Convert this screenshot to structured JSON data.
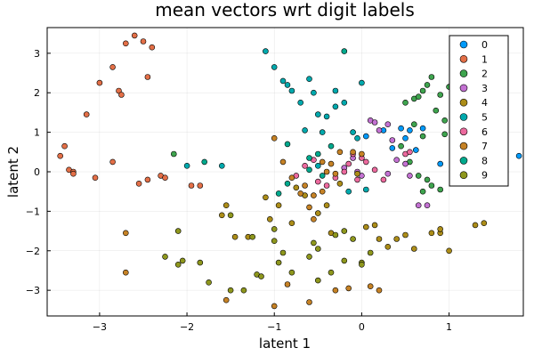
{
  "chart_data": {
    "type": "scatter",
    "title": "mean vectors wrt digit labels",
    "xlabel": "latent 1",
    "ylabel": "latent 2",
    "xlim": [
      -3.6,
      1.85
    ],
    "ylim": [
      -3.65,
      3.65
    ],
    "xticks": [
      -3,
      -2,
      -1,
      0,
      1
    ],
    "yticks": [
      -3,
      -2,
      -1,
      0,
      1,
      2,
      3
    ],
    "grid": true,
    "legend_position": "top-right",
    "series": [
      {
        "name": "0",
        "color": "#009AFA",
        "points": [
          [
            0.05,
            0.9
          ],
          [
            0.25,
            1.05
          ],
          [
            0.45,
            1.1
          ],
          [
            0.55,
            1.05
          ],
          [
            0.7,
            1.1
          ],
          [
            0.62,
            0.55
          ],
          [
            0.9,
            0.2
          ],
          [
            1.05,
            0.45
          ],
          [
            1.2,
            0.55
          ],
          [
            1.45,
            0.5
          ],
          [
            1.6,
            0.45
          ],
          [
            1.8,
            0.4
          ],
          [
            0.35,
            0.6
          ],
          [
            0.5,
            0.85
          ]
        ]
      },
      {
        "name": "1",
        "color": "#E36F47",
        "points": [
          [
            -3.45,
            0.4
          ],
          [
            -3.4,
            0.65
          ],
          [
            -3.35,
            0.05
          ],
          [
            -3.3,
            0.0
          ],
          [
            -3.3,
            -0.05
          ],
          [
            -3.15,
            1.45
          ],
          [
            -3.05,
            -0.15
          ],
          [
            -3.0,
            2.25
          ],
          [
            -2.85,
            2.65
          ],
          [
            -2.78,
            2.05
          ],
          [
            -2.75,
            1.95
          ],
          [
            -2.7,
            3.25
          ],
          [
            -2.6,
            3.45
          ],
          [
            -2.5,
            3.3
          ],
          [
            -2.45,
            2.4
          ],
          [
            -2.4,
            3.15
          ],
          [
            -2.3,
            -0.1
          ],
          [
            -2.25,
            -0.15
          ],
          [
            -2.45,
            -0.2
          ],
          [
            -2.55,
            -0.3
          ],
          [
            -2.85,
            0.25
          ],
          [
            -1.95,
            -0.35
          ],
          [
            -1.85,
            -0.35
          ]
        ]
      },
      {
        "name": "2",
        "color": "#3EA44E",
        "points": [
          [
            -2.15,
            0.45
          ],
          [
            0.5,
            1.75
          ],
          [
            0.6,
            1.85
          ],
          [
            0.65,
            1.9
          ],
          [
            0.7,
            2.05
          ],
          [
            0.75,
            2.2
          ],
          [
            0.8,
            2.4
          ],
          [
            0.85,
            1.55
          ],
          [
            0.9,
            1.95
          ],
          [
            0.95,
            1.3
          ],
          [
            1.0,
            2.15
          ],
          [
            1.05,
            1.25
          ],
          [
            1.1,
            1.6
          ],
          [
            1.2,
            1.8
          ],
          [
            0.95,
            0.95
          ],
          [
            1.15,
            1.05
          ],
          [
            1.3,
            0.65
          ],
          [
            0.6,
            1.2
          ],
          [
            0.7,
            0.9
          ],
          [
            0.45,
            0.65
          ],
          [
            0.55,
            0.25
          ],
          [
            0.65,
            -0.1
          ],
          [
            0.75,
            -0.2
          ],
          [
            0.8,
            -0.35
          ],
          [
            0.7,
            -0.5
          ],
          [
            0.9,
            -0.45
          ]
        ]
      },
      {
        "name": "3",
        "color": "#C371D2",
        "points": [
          [
            0.1,
            1.3
          ],
          [
            0.15,
            1.25
          ],
          [
            0.2,
            1.05
          ],
          [
            0.3,
            1.2
          ],
          [
            0.35,
            0.8
          ],
          [
            0.4,
            0.3
          ],
          [
            0.5,
            0.2
          ],
          [
            0.55,
            -0.1
          ],
          [
            0.65,
            -0.85
          ],
          [
            0.75,
            -0.85
          ],
          [
            0.3,
            -0.05
          ],
          [
            -0.1,
            0.35
          ],
          [
            -0.2,
            0.1
          ],
          [
            -0.05,
            0.0
          ],
          [
            0.0,
            -0.1
          ]
        ]
      },
      {
        "name": "4",
        "color": "#AC8D18",
        "points": [
          [
            -1.3,
            -1.65
          ],
          [
            -1.45,
            -1.65
          ],
          [
            -1.55,
            -0.85
          ],
          [
            -1.6,
            -1.1
          ],
          [
            -1.1,
            -0.65
          ],
          [
            -1.05,
            -1.2
          ],
          [
            -0.95,
            -0.85
          ],
          [
            -0.8,
            -1.3
          ],
          [
            -0.75,
            -0.4
          ],
          [
            -0.65,
            -0.6
          ],
          [
            -0.5,
            -1.05
          ],
          [
            -0.4,
            -0.85
          ],
          [
            -0.35,
            -1.55
          ],
          [
            -0.25,
            -0.3
          ],
          [
            -0.05,
            -0.05
          ],
          [
            0.05,
            -1.4
          ],
          [
            0.15,
            -1.35
          ],
          [
            0.3,
            -1.9
          ],
          [
            0.4,
            -1.7
          ],
          [
            0.6,
            -1.95
          ],
          [
            0.8,
            -1.55
          ],
          [
            0.9,
            -1.55
          ],
          [
            1.0,
            -2.0
          ],
          [
            1.4,
            -1.3
          ],
          [
            1.3,
            -1.35
          ],
          [
            0.9,
            -1.45
          ],
          [
            0.5,
            -1.6
          ],
          [
            0.2,
            -1.7
          ]
        ]
      },
      {
        "name": "5",
        "color": "#00A9AD",
        "points": [
          [
            -1.1,
            3.05
          ],
          [
            -1.0,
            2.65
          ],
          [
            -0.9,
            2.3
          ],
          [
            -0.85,
            2.2
          ],
          [
            -0.8,
            2.05
          ],
          [
            -0.7,
            1.75
          ],
          [
            -0.65,
            1.05
          ],
          [
            -0.6,
            2.35
          ],
          [
            -0.55,
            2.0
          ],
          [
            -0.5,
            1.45
          ],
          [
            -0.45,
            1.0
          ],
          [
            -0.4,
            1.4
          ],
          [
            -0.3,
            2.05
          ],
          [
            -0.3,
            1.65
          ],
          [
            -0.2,
            1.75
          ],
          [
            -0.1,
            1.0
          ],
          [
            -0.05,
            0.85
          ],
          [
            0.0,
            2.25
          ],
          [
            -2.0,
            0.15
          ],
          [
            -1.6,
            0.15
          ],
          [
            -0.5,
            0.15
          ],
          [
            0.05,
            -0.45
          ],
          [
            -0.15,
            -0.5
          ]
        ]
      },
      {
        "name": "6",
        "color": "#EC6A9E",
        "points": [
          [
            -0.2,
            0.0
          ],
          [
            -0.15,
            0.2
          ],
          [
            -0.1,
            0.45
          ],
          [
            0.0,
            0.35
          ],
          [
            0.05,
            0.25
          ],
          [
            -0.05,
            -0.2
          ],
          [
            -0.3,
            -0.15
          ],
          [
            -0.4,
            -0.35
          ],
          [
            -0.5,
            -0.25
          ],
          [
            -0.55,
            0.3
          ],
          [
            -0.65,
            0.15
          ],
          [
            -0.75,
            -0.1
          ],
          [
            0.5,
            0.45
          ],
          [
            0.55,
            0.5
          ],
          [
            0.25,
            -0.2
          ],
          [
            0.15,
            0.05
          ]
        ]
      },
      {
        "name": "7",
        "color": "#C68225",
        "points": [
          [
            -2.7,
            -1.55
          ],
          [
            -2.7,
            -2.55
          ],
          [
            -1.0,
            0.85
          ],
          [
            -0.9,
            0.25
          ],
          [
            -0.8,
            -0.15
          ],
          [
            -0.7,
            -0.55
          ],
          [
            -0.6,
            -0.9
          ],
          [
            -0.55,
            -1.2
          ],
          [
            -0.45,
            0.25
          ],
          [
            -0.35,
            0.2
          ],
          [
            -0.25,
            0.5
          ],
          [
            -0.1,
            0.5
          ],
          [
            0.0,
            0.45
          ],
          [
            -0.4,
            0.0
          ],
          [
            -0.3,
            -0.05
          ],
          [
            -0.45,
            -0.5
          ],
          [
            -0.55,
            -0.6
          ],
          [
            -0.65,
            -0.35
          ],
          [
            -1.55,
            -3.25
          ],
          [
            -1.0,
            -3.4
          ],
          [
            -0.6,
            -3.3
          ],
          [
            -0.3,
            -3.0
          ],
          [
            -0.15,
            -2.95
          ],
          [
            0.1,
            -2.9
          ],
          [
            0.2,
            -3.0
          ],
          [
            -0.85,
            -2.85
          ]
        ]
      },
      {
        "name": "8",
        "color": "#00A98D",
        "points": [
          [
            -1.8,
            0.25
          ],
          [
            -0.85,
            0.7
          ],
          [
            -0.6,
            0.35
          ],
          [
            -0.5,
            0.45
          ],
          [
            -0.35,
            0.65
          ],
          [
            -0.2,
            3.05
          ],
          [
            -0.6,
            0.05
          ],
          [
            -0.45,
            -0.1
          ],
          [
            -0.85,
            -0.3
          ],
          [
            -0.95,
            -0.55
          ]
        ]
      },
      {
        "name": "9",
        "color": "#8E971D",
        "points": [
          [
            -2.25,
            -2.15
          ],
          [
            -2.1,
            -2.35
          ],
          [
            -2.05,
            -2.25
          ],
          [
            -2.1,
            -1.5
          ],
          [
            -1.85,
            -2.3
          ],
          [
            -1.75,
            -2.8
          ],
          [
            -1.5,
            -3.0
          ],
          [
            -1.35,
            -3.0
          ],
          [
            -1.5,
            -1.1
          ],
          [
            -1.25,
            -1.65
          ],
          [
            -1.2,
            -2.6
          ],
          [
            -1.15,
            -2.65
          ],
          [
            -1.0,
            -1.75
          ],
          [
            -1.0,
            -1.45
          ],
          [
            -0.95,
            -2.3
          ],
          [
            -0.9,
            -2.05
          ],
          [
            -0.8,
            -2.55
          ],
          [
            -0.6,
            -2.15
          ],
          [
            -0.55,
            -1.8
          ],
          [
            -0.5,
            -2.75
          ],
          [
            -0.5,
            -1.95
          ],
          [
            -0.35,
            -2.55
          ],
          [
            -0.3,
            -1.6
          ],
          [
            -0.2,
            -2.25
          ],
          [
            0.0,
            -2.3
          ],
          [
            0.0,
            -2.35
          ],
          [
            0.1,
            -2.05
          ],
          [
            -0.2,
            -1.5
          ],
          [
            -0.1,
            -1.7
          ]
        ]
      }
    ]
  }
}
